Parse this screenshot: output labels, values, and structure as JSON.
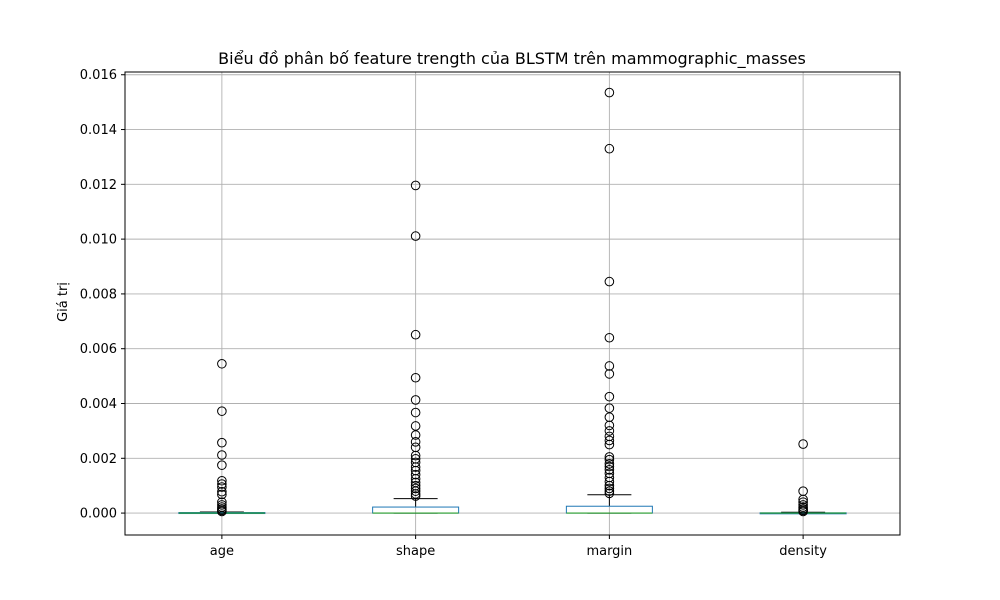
{
  "chart_data": {
    "type": "box",
    "title": "Biểu đồ phân bố feature trength của BLSTM trên mammographic_masses",
    "xlabel": "",
    "ylabel": "Giá trị",
    "ylim": [
      -0.0008,
      0.0161
    ],
    "yticks": [
      "0.000",
      "0.002",
      "0.004",
      "0.006",
      "0.008",
      "0.010",
      "0.012",
      "0.014",
      "0.016"
    ],
    "ytick_values": [
      0,
      0.002,
      0.004,
      0.006,
      0.008,
      0.01,
      0.012,
      0.014,
      0.016
    ],
    "grid": true,
    "categories": [
      "age",
      "shape",
      "margin",
      "density"
    ],
    "series": [
      {
        "category": "age",
        "whisker_low": 0.0,
        "q1": 0.0,
        "median": 0.0,
        "q3": 2e-05,
        "whisker_high": 4e-05,
        "outliers": [
          0.00545,
          0.00372,
          0.00257,
          0.00212,
          0.00175,
          0.00118,
          0.00106,
          0.00095,
          0.00078,
          0.00068,
          0.0004,
          0.0003,
          0.00022,
          0.00015,
          0.0001,
          6e-05
        ]
      },
      {
        "category": "shape",
        "whisker_low": 0.0,
        "q1": 0.0,
        "median": 0.0,
        "q3": 0.00022,
        "whisker_high": 0.00053,
        "outliers": [
          0.01196,
          0.01011,
          0.00651,
          0.00494,
          0.00413,
          0.00367,
          0.00318,
          0.00285,
          0.0026,
          0.0024,
          0.0021,
          0.00198,
          0.00185,
          0.00168,
          0.00155,
          0.0014,
          0.00125,
          0.00112,
          0.001,
          0.0009,
          0.0008,
          0.0007,
          0.00062
        ]
      },
      {
        "category": "margin",
        "whisker_low": 0.0,
        "q1": 0.0,
        "median": 0.0,
        "q3": 0.00025,
        "whisker_high": 0.00067,
        "outliers": [
          0.01535,
          0.0133,
          0.00845,
          0.0064,
          0.00537,
          0.00508,
          0.00425,
          0.00383,
          0.0035,
          0.0032,
          0.003,
          0.0028,
          0.00265,
          0.0025,
          0.00205,
          0.00195,
          0.0018,
          0.0017,
          0.00158,
          0.00145,
          0.0013,
          0.00115,
          0.001,
          0.0009,
          0.0008,
          0.00072
        ]
      },
      {
        "category": "density",
        "whisker_low": 0.0,
        "q1": 0.0,
        "median": 0.0,
        "q3": 1e-05,
        "whisker_high": 3e-05,
        "outliers": [
          0.00252,
          0.0008,
          0.0005,
          0.0004,
          0.0003,
          0.00022,
          0.00015,
          0.0001,
          6e-05
        ]
      }
    ],
    "colors": {
      "box": "#1f77b4",
      "median": "#2ca02c",
      "whisker": "#000000",
      "outlier_edge": "#000000",
      "grid": "#b0b0b0",
      "axes": "#000000"
    }
  }
}
